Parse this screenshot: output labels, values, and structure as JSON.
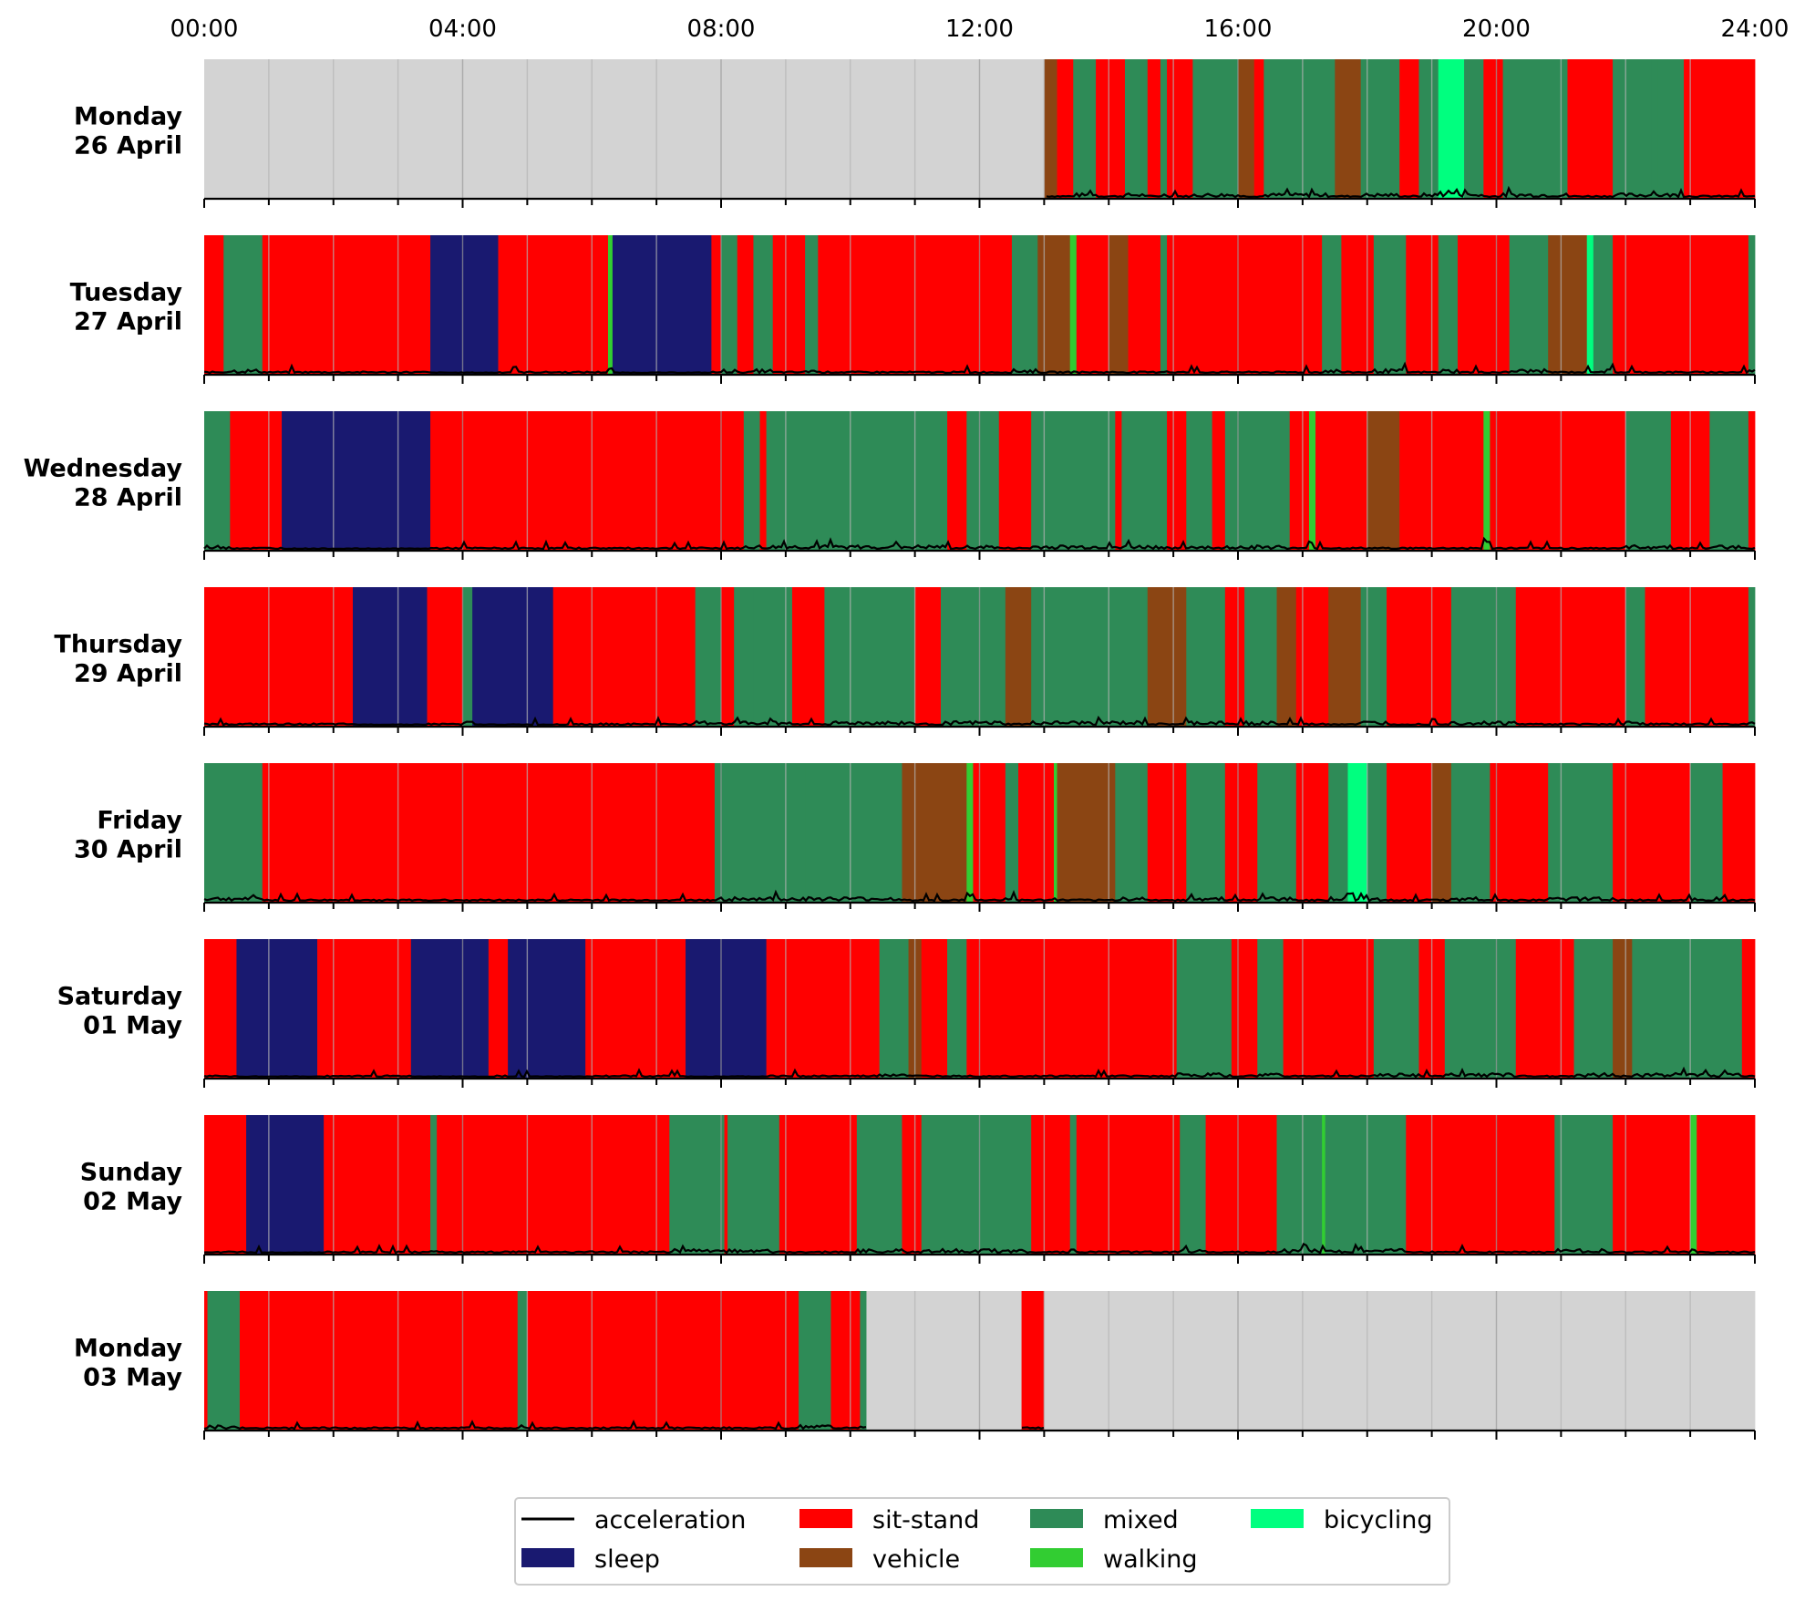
{
  "chart_data": {
    "type": "timeline",
    "x_axis": {
      "ticks": [
        "00:00",
        "04:00",
        "08:00",
        "12:00",
        "16:00",
        "20:00",
        "24:00"
      ],
      "range_hours": [
        0,
        24
      ]
    },
    "colors": {
      "nodata": "#d3d3d3",
      "acceleration": "#000000",
      "sleep": "#191970",
      "sit-stand": "#ff0000",
      "vehicle": "#8b4513",
      "mixed": "#2e8b57",
      "walking": "#32cd32",
      "bicycling": "#00ff7f"
    },
    "legend": {
      "placement": "bottom-center",
      "entries": [
        {
          "key": "acceleration",
          "label": "acceleration",
          "kind": "line"
        },
        {
          "key": "sleep",
          "label": "sleep",
          "kind": "patch"
        },
        {
          "key": "sit-stand",
          "label": "sit-stand",
          "kind": "patch"
        },
        {
          "key": "vehicle",
          "label": "vehicle",
          "kind": "patch"
        },
        {
          "key": "mixed",
          "label": "mixed",
          "kind": "patch"
        },
        {
          "key": "walking",
          "label": "walking",
          "kind": "patch"
        },
        {
          "key": "bicycling",
          "label": "bicycling",
          "kind": "patch"
        }
      ]
    },
    "days": [
      {
        "label_line1": "Monday",
        "label_line2": "26 April",
        "segments": [
          [
            0,
            13.0,
            "nodata"
          ],
          [
            13.0,
            13.2,
            "vehicle"
          ],
          [
            13.2,
            13.45,
            "sit-stand"
          ],
          [
            13.45,
            13.8,
            "mixed"
          ],
          [
            13.8,
            14.25,
            "sit-stand"
          ],
          [
            14.25,
            14.6,
            "mixed"
          ],
          [
            14.6,
            14.8,
            "sit-stand"
          ],
          [
            14.8,
            14.9,
            "mixed"
          ],
          [
            14.9,
            15.3,
            "sit-stand"
          ],
          [
            15.3,
            16.0,
            "mixed"
          ],
          [
            16.0,
            16.25,
            "vehicle"
          ],
          [
            16.25,
            16.4,
            "sit-stand"
          ],
          [
            16.4,
            17.5,
            "mixed"
          ],
          [
            17.5,
            17.9,
            "vehicle"
          ],
          [
            17.9,
            18.5,
            "mixed"
          ],
          [
            18.5,
            18.8,
            "sit-stand"
          ],
          [
            18.8,
            19.1,
            "mixed"
          ],
          [
            19.1,
            19.5,
            "bicycling"
          ],
          [
            19.5,
            19.8,
            "mixed"
          ],
          [
            19.8,
            20.1,
            "sit-stand"
          ],
          [
            20.1,
            21.1,
            "mixed"
          ],
          [
            21.1,
            21.8,
            "sit-stand"
          ],
          [
            21.8,
            22.4,
            "mixed"
          ],
          [
            22.4,
            22.5,
            "mixed"
          ],
          [
            22.5,
            22.9,
            "mixed"
          ],
          [
            22.9,
            24.0,
            "sit-stand"
          ]
        ]
      },
      {
        "label_line1": "Tuesday",
        "label_line2": "27 April",
        "segments": [
          [
            0,
            0.3,
            "sit-stand"
          ],
          [
            0.3,
            0.9,
            "mixed"
          ],
          [
            0.9,
            3.5,
            "sit-stand"
          ],
          [
            3.5,
            4.55,
            "sleep"
          ],
          [
            4.55,
            6.25,
            "sit-stand"
          ],
          [
            6.25,
            6.32,
            "walking"
          ],
          [
            6.32,
            7.85,
            "sleep"
          ],
          [
            7.85,
            8.0,
            "sit-stand"
          ],
          [
            8.0,
            8.25,
            "mixed"
          ],
          [
            8.25,
            8.5,
            "sit-stand"
          ],
          [
            8.5,
            8.8,
            "mixed"
          ],
          [
            8.8,
            9.3,
            "sit-stand"
          ],
          [
            9.3,
            9.5,
            "mixed"
          ],
          [
            9.5,
            12.5,
            "sit-stand"
          ],
          [
            12.5,
            12.9,
            "mixed"
          ],
          [
            12.9,
            13.4,
            "vehicle"
          ],
          [
            13.4,
            13.5,
            "walking"
          ],
          [
            13.5,
            14.0,
            "sit-stand"
          ],
          [
            14.0,
            14.3,
            "vehicle"
          ],
          [
            14.3,
            14.8,
            "sit-stand"
          ],
          [
            14.8,
            14.9,
            "mixed"
          ],
          [
            14.9,
            17.3,
            "sit-stand"
          ],
          [
            17.3,
            17.6,
            "mixed"
          ],
          [
            17.6,
            18.1,
            "sit-stand"
          ],
          [
            18.1,
            18.6,
            "mixed"
          ],
          [
            18.6,
            19.1,
            "sit-stand"
          ],
          [
            19.1,
            19.4,
            "mixed"
          ],
          [
            19.4,
            20.2,
            "sit-stand"
          ],
          [
            20.2,
            20.8,
            "mixed"
          ],
          [
            20.8,
            21.4,
            "vehicle"
          ],
          [
            21.4,
            21.5,
            "bicycling"
          ],
          [
            21.5,
            21.8,
            "mixed"
          ],
          [
            21.8,
            23.9,
            "sit-stand"
          ],
          [
            23.9,
            24.0,
            "mixed"
          ]
        ]
      },
      {
        "label_line1": "Wednesday",
        "label_line2": "28 April",
        "segments": [
          [
            0,
            0.4,
            "mixed"
          ],
          [
            0.4,
            1.2,
            "sit-stand"
          ],
          [
            1.2,
            3.5,
            "sleep"
          ],
          [
            3.5,
            8.35,
            "sit-stand"
          ],
          [
            8.35,
            8.6,
            "mixed"
          ],
          [
            8.6,
            8.7,
            "sit-stand"
          ],
          [
            8.7,
            11.5,
            "mixed"
          ],
          [
            11.5,
            11.8,
            "sit-stand"
          ],
          [
            11.8,
            12.3,
            "mixed"
          ],
          [
            12.3,
            12.8,
            "sit-stand"
          ],
          [
            12.8,
            14.1,
            "mixed"
          ],
          [
            14.1,
            14.2,
            "sit-stand"
          ],
          [
            14.2,
            14.9,
            "mixed"
          ],
          [
            14.9,
            15.2,
            "sit-stand"
          ],
          [
            15.2,
            15.6,
            "mixed"
          ],
          [
            15.6,
            15.8,
            "sit-stand"
          ],
          [
            15.8,
            16.8,
            "mixed"
          ],
          [
            16.8,
            17.1,
            "sit-stand"
          ],
          [
            17.1,
            17.2,
            "walking"
          ],
          [
            17.2,
            18.0,
            "sit-stand"
          ],
          [
            18.0,
            18.5,
            "vehicle"
          ],
          [
            18.5,
            19.8,
            "sit-stand"
          ],
          [
            19.8,
            19.9,
            "walking"
          ],
          [
            19.9,
            22.0,
            "sit-stand"
          ],
          [
            22.0,
            22.7,
            "mixed"
          ],
          [
            22.7,
            23.3,
            "sit-stand"
          ],
          [
            23.3,
            23.9,
            "mixed"
          ],
          [
            23.9,
            24.0,
            "sit-stand"
          ]
        ]
      },
      {
        "label_line1": "Thursday",
        "label_line2": "29 April",
        "segments": [
          [
            0,
            2.3,
            "sit-stand"
          ],
          [
            2.3,
            3.45,
            "sleep"
          ],
          [
            3.45,
            4.0,
            "sit-stand"
          ],
          [
            4.0,
            4.15,
            "mixed"
          ],
          [
            4.15,
            5.4,
            "sleep"
          ],
          [
            5.4,
            7.6,
            "sit-stand"
          ],
          [
            7.6,
            8.0,
            "mixed"
          ],
          [
            8.0,
            8.2,
            "sit-stand"
          ],
          [
            8.2,
            8.5,
            "mixed"
          ],
          [
            8.5,
            9.1,
            "mixed"
          ],
          [
            9.1,
            9.6,
            "sit-stand"
          ],
          [
            9.6,
            11.0,
            "mixed"
          ],
          [
            11.0,
            11.4,
            "sit-stand"
          ],
          [
            11.4,
            12.4,
            "mixed"
          ],
          [
            12.4,
            12.8,
            "vehicle"
          ],
          [
            12.8,
            14.6,
            "mixed"
          ],
          [
            14.6,
            15.2,
            "vehicle"
          ],
          [
            15.2,
            15.8,
            "mixed"
          ],
          [
            15.8,
            16.1,
            "sit-stand"
          ],
          [
            16.1,
            16.6,
            "mixed"
          ],
          [
            16.6,
            16.9,
            "vehicle"
          ],
          [
            16.9,
            17.4,
            "sit-stand"
          ],
          [
            17.4,
            17.9,
            "vehicle"
          ],
          [
            17.9,
            18.3,
            "mixed"
          ],
          [
            18.3,
            19.3,
            "sit-stand"
          ],
          [
            19.3,
            20.3,
            "mixed"
          ],
          [
            20.3,
            21.0,
            "sit-stand"
          ],
          [
            21.0,
            22.0,
            "sit-stand"
          ],
          [
            22.0,
            22.3,
            "mixed"
          ],
          [
            22.3,
            22.6,
            "sit-stand"
          ],
          [
            22.6,
            23.9,
            "sit-stand"
          ],
          [
            23.9,
            24.0,
            "mixed"
          ]
        ]
      },
      {
        "label_line1": "Friday",
        "label_line2": "30 April",
        "segments": [
          [
            0,
            0.9,
            "mixed"
          ],
          [
            0.9,
            7.9,
            "sit-stand"
          ],
          [
            7.9,
            9.3,
            "mixed"
          ],
          [
            9.3,
            10.8,
            "mixed"
          ],
          [
            10.8,
            11.8,
            "vehicle"
          ],
          [
            11.8,
            11.9,
            "walking"
          ],
          [
            11.9,
            12.4,
            "sit-stand"
          ],
          [
            12.4,
            12.6,
            "mixed"
          ],
          [
            12.6,
            13.15,
            "sit-stand"
          ],
          [
            13.15,
            13.2,
            "walking"
          ],
          [
            13.2,
            14.1,
            "vehicle"
          ],
          [
            14.1,
            14.6,
            "mixed"
          ],
          [
            14.6,
            15.2,
            "sit-stand"
          ],
          [
            15.2,
            15.8,
            "mixed"
          ],
          [
            15.8,
            16.3,
            "sit-stand"
          ],
          [
            16.3,
            16.9,
            "mixed"
          ],
          [
            16.9,
            17.4,
            "sit-stand"
          ],
          [
            17.4,
            17.7,
            "mixed"
          ],
          [
            17.7,
            18.0,
            "bicycling"
          ],
          [
            18.0,
            18.3,
            "mixed"
          ],
          [
            18.3,
            19.0,
            "sit-stand"
          ],
          [
            19.0,
            19.3,
            "vehicle"
          ],
          [
            19.3,
            19.9,
            "mixed"
          ],
          [
            19.9,
            20.8,
            "sit-stand"
          ],
          [
            20.8,
            21.8,
            "mixed"
          ],
          [
            21.8,
            23.0,
            "sit-stand"
          ],
          [
            23.0,
            23.5,
            "mixed"
          ],
          [
            23.5,
            24.0,
            "sit-stand"
          ]
        ]
      },
      {
        "label_line1": "Saturday",
        "label_line2": "01 May",
        "segments": [
          [
            0,
            0.5,
            "sit-stand"
          ],
          [
            0.5,
            1.75,
            "sleep"
          ],
          [
            1.75,
            3.2,
            "sit-stand"
          ],
          [
            3.2,
            4.4,
            "sleep"
          ],
          [
            4.4,
            4.7,
            "sit-stand"
          ],
          [
            4.7,
            5.9,
            "sleep"
          ],
          [
            5.9,
            7.45,
            "sit-stand"
          ],
          [
            7.45,
            8.7,
            "sleep"
          ],
          [
            8.7,
            10.45,
            "sit-stand"
          ],
          [
            10.45,
            10.9,
            "mixed"
          ],
          [
            10.9,
            11.1,
            "vehicle"
          ],
          [
            11.1,
            11.5,
            "sit-stand"
          ],
          [
            11.5,
            11.8,
            "mixed"
          ],
          [
            11.8,
            15.05,
            "sit-stand"
          ],
          [
            15.05,
            15.9,
            "mixed"
          ],
          [
            15.9,
            16.3,
            "sit-stand"
          ],
          [
            16.3,
            16.7,
            "mixed"
          ],
          [
            16.7,
            18.1,
            "sit-stand"
          ],
          [
            18.1,
            18.8,
            "mixed"
          ],
          [
            18.8,
            19.2,
            "sit-stand"
          ],
          [
            19.2,
            20.3,
            "mixed"
          ],
          [
            20.3,
            21.2,
            "sit-stand"
          ],
          [
            21.2,
            21.8,
            "mixed"
          ],
          [
            21.8,
            22.1,
            "vehicle"
          ],
          [
            22.1,
            23.8,
            "mixed"
          ],
          [
            23.8,
            24.0,
            "sit-stand"
          ]
        ]
      },
      {
        "label_line1": "Sunday",
        "label_line2": "02 May",
        "segments": [
          [
            0,
            0.65,
            "sit-stand"
          ],
          [
            0.65,
            1.85,
            "sleep"
          ],
          [
            1.85,
            3.5,
            "sit-stand"
          ],
          [
            3.5,
            3.6,
            "mixed"
          ],
          [
            3.6,
            7.2,
            "sit-stand"
          ],
          [
            7.2,
            8.05,
            "mixed"
          ],
          [
            8.05,
            8.1,
            "sit-stand"
          ],
          [
            8.1,
            8.9,
            "mixed"
          ],
          [
            8.9,
            10.1,
            "sit-stand"
          ],
          [
            10.1,
            10.8,
            "mixed"
          ],
          [
            10.8,
            11.1,
            "sit-stand"
          ],
          [
            11.1,
            12.8,
            "mixed"
          ],
          [
            12.8,
            13.4,
            "sit-stand"
          ],
          [
            13.4,
            13.5,
            "mixed"
          ],
          [
            13.5,
            15.1,
            "sit-stand"
          ],
          [
            15.1,
            15.5,
            "mixed"
          ],
          [
            15.5,
            16.6,
            "sit-stand"
          ],
          [
            16.6,
            17.3,
            "mixed"
          ],
          [
            17.3,
            17.35,
            "walking"
          ],
          [
            17.35,
            18.6,
            "mixed"
          ],
          [
            18.6,
            20.9,
            "sit-stand"
          ],
          [
            20.9,
            21.8,
            "mixed"
          ],
          [
            21.8,
            23.0,
            "sit-stand"
          ],
          [
            23.0,
            23.1,
            "walking"
          ],
          [
            23.1,
            24.0,
            "sit-stand"
          ]
        ]
      },
      {
        "label_line1": "Monday",
        "label_line2": "03 May",
        "segments": [
          [
            0,
            0.05,
            "sit-stand"
          ],
          [
            0.05,
            0.55,
            "mixed"
          ],
          [
            0.55,
            4.85,
            "sit-stand"
          ],
          [
            4.85,
            5.0,
            "mixed"
          ],
          [
            5.0,
            9.2,
            "sit-stand"
          ],
          [
            9.2,
            9.7,
            "mixed"
          ],
          [
            9.7,
            10.15,
            "sit-stand"
          ],
          [
            10.15,
            10.25,
            "mixed"
          ],
          [
            10.25,
            12.65,
            "nodata"
          ],
          [
            12.65,
            13.0,
            "sit-stand"
          ],
          [
            13.0,
            24.0,
            "nodata"
          ]
        ]
      }
    ]
  }
}
